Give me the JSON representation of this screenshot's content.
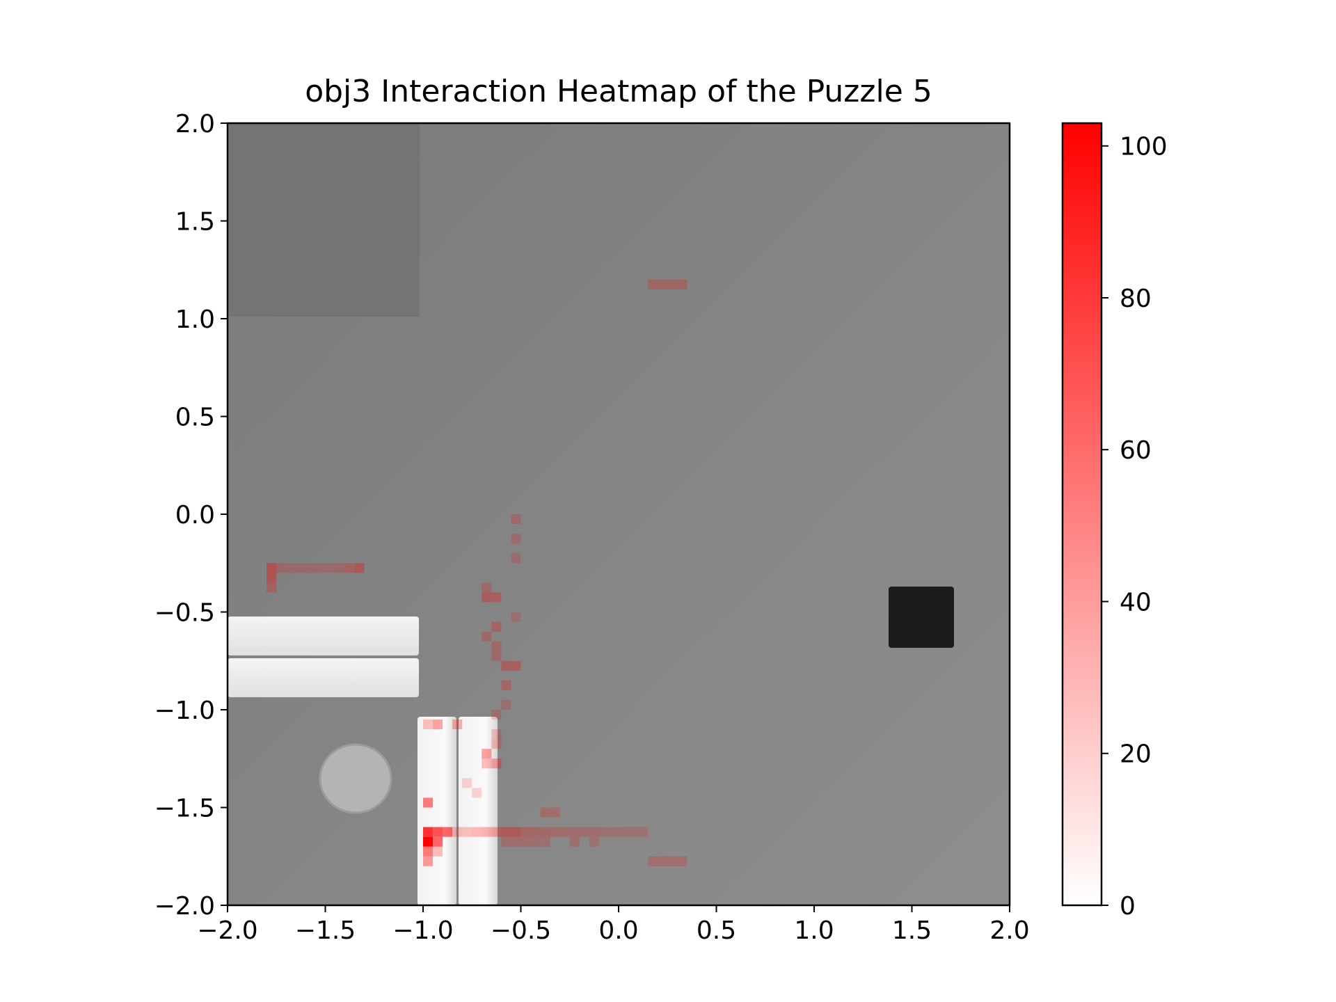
{
  "chart_data": {
    "type": "heatmap",
    "title": "obj3 Interaction Heatmap of the Puzzle 5",
    "xlabel": "",
    "ylabel": "",
    "xlim": [
      -2.0,
      2.0
    ],
    "ylim": [
      -2.0,
      2.0
    ],
    "x_ticks": [
      "−2.0",
      "−1.5",
      "−1.0",
      "−0.5",
      "0.0",
      "0.5",
      "1.0",
      "1.5",
      "2.0"
    ],
    "y_ticks": [
      "2.0",
      "1.5",
      "1.0",
      "0.5",
      "0.0",
      "−0.5",
      "−1.0",
      "−1.5",
      "−2.0"
    ],
    "grid": false,
    "colorbar": {
      "min": 0,
      "max": 103,
      "ticks": [
        "0",
        "20",
        "40",
        "60",
        "80",
        "100"
      ],
      "tick_values": [
        0,
        20,
        40,
        60,
        80,
        100
      ],
      "color_low": "#ffffff",
      "color_high": "#ff0000"
    },
    "cell_size": 0.05,
    "cells": [
      {
        "x": -0.975,
        "y": -1.675,
        "v": 103
      },
      {
        "x": -0.975,
        "y": -1.625,
        "v": 80
      },
      {
        "x": -0.925,
        "y": -1.625,
        "v": 65
      },
      {
        "x": -0.875,
        "y": -1.625,
        "v": 55
      },
      {
        "x": -0.925,
        "y": -1.675,
        "v": 55
      },
      {
        "x": -0.975,
        "y": -1.725,
        "v": 45
      },
      {
        "x": -0.975,
        "y": -1.475,
        "v": 45
      },
      {
        "x": -0.975,
        "y": -1.775,
        "v": 30
      },
      {
        "x": -0.925,
        "y": -1.725,
        "v": 15
      },
      {
        "x": -0.925,
        "y": -1.075,
        "v": 25
      },
      {
        "x": -0.975,
        "y": -1.075,
        "v": 12
      },
      {
        "x": -0.825,
        "y": -1.075,
        "v": 20
      },
      {
        "x": -0.825,
        "y": -1.625,
        "v": 14
      },
      {
        "x": -0.775,
        "y": -1.625,
        "v": 12
      },
      {
        "x": -0.725,
        "y": -1.625,
        "v": 16
      },
      {
        "x": -0.675,
        "y": -1.625,
        "v": 20
      },
      {
        "x": -0.625,
        "y": -1.625,
        "v": 22
      },
      {
        "x": -0.575,
        "y": -1.625,
        "v": 25
      },
      {
        "x": -0.525,
        "y": -1.625,
        "v": 25
      },
      {
        "x": -0.475,
        "y": -1.625,
        "v": 15
      },
      {
        "x": -0.425,
        "y": -1.625,
        "v": 12
      },
      {
        "x": -0.375,
        "y": -1.625,
        "v": 12
      },
      {
        "x": -0.325,
        "y": -1.625,
        "v": 10
      },
      {
        "x": -0.275,
        "y": -1.625,
        "v": 10
      },
      {
        "x": -0.225,
        "y": -1.625,
        "v": 8
      },
      {
        "x": -0.175,
        "y": -1.625,
        "v": 8
      },
      {
        "x": -0.125,
        "y": -1.625,
        "v": 8
      },
      {
        "x": -0.075,
        "y": -1.625,
        "v": 6
      },
      {
        "x": -0.025,
        "y": -1.625,
        "v": 6
      },
      {
        "x": 0.025,
        "y": -1.625,
        "v": 6
      },
      {
        "x": 0.075,
        "y": -1.625,
        "v": 6
      },
      {
        "x": 0.125,
        "y": -1.625,
        "v": 6
      },
      {
        "x": -0.575,
        "y": -1.675,
        "v": 8
      },
      {
        "x": -0.525,
        "y": -1.675,
        "v": 8
      },
      {
        "x": -0.475,
        "y": -1.675,
        "v": 10
      },
      {
        "x": -0.425,
        "y": -1.675,
        "v": 8
      },
      {
        "x": -0.375,
        "y": -1.675,
        "v": 6
      },
      {
        "x": -0.325,
        "y": -1.525,
        "v": 10
      },
      {
        "x": -0.375,
        "y": -1.525,
        "v": 10
      },
      {
        "x": -0.225,
        "y": -1.675,
        "v": 8
      },
      {
        "x": -0.125,
        "y": -1.675,
        "v": 6
      },
      {
        "x": 0.175,
        "y": -1.775,
        "v": 10
      },
      {
        "x": 0.225,
        "y": -1.775,
        "v": 10
      },
      {
        "x": 0.275,
        "y": -1.775,
        "v": 10
      },
      {
        "x": 0.325,
        "y": -1.775,
        "v": 10
      },
      {
        "x": -0.625,
        "y": -1.275,
        "v": 22
      },
      {
        "x": -0.675,
        "y": -1.275,
        "v": 15
      },
      {
        "x": -0.675,
        "y": -1.225,
        "v": 28
      },
      {
        "x": -0.625,
        "y": -1.175,
        "v": 12
      },
      {
        "x": -0.625,
        "y": -1.125,
        "v": 8
      },
      {
        "x": -0.625,
        "y": -1.025,
        "v": 8
      },
      {
        "x": -0.575,
        "y": -0.975,
        "v": 6
      },
      {
        "x": -0.575,
        "y": -0.875,
        "v": 15
      },
      {
        "x": -0.525,
        "y": -0.775,
        "v": 18
      },
      {
        "x": -0.575,
        "y": -0.775,
        "v": 18
      },
      {
        "x": -0.625,
        "y": -0.725,
        "v": 10
      },
      {
        "x": -0.625,
        "y": -0.675,
        "v": 10
      },
      {
        "x": -0.625,
        "y": -0.575,
        "v": 15
      },
      {
        "x": -0.675,
        "y": -0.625,
        "v": 12
      },
      {
        "x": -0.675,
        "y": -0.425,
        "v": 20
      },
      {
        "x": -0.625,
        "y": -0.425,
        "v": 18
      },
      {
        "x": -0.675,
        "y": -0.375,
        "v": 10
      },
      {
        "x": -0.525,
        "y": -0.225,
        "v": 6
      },
      {
        "x": -0.525,
        "y": -0.125,
        "v": 6
      },
      {
        "x": -0.525,
        "y": -0.025,
        "v": 10
      },
      {
        "x": -0.525,
        "y": -0.525,
        "v": 5
      },
      {
        "x": -1.775,
        "y": -0.275,
        "v": 28
      },
      {
        "x": -1.775,
        "y": -0.325,
        "v": 25
      },
      {
        "x": -1.775,
        "y": -0.375,
        "v": 15
      },
      {
        "x": -1.725,
        "y": -0.275,
        "v": 8
      },
      {
        "x": -1.675,
        "y": -0.275,
        "v": 6
      },
      {
        "x": -1.625,
        "y": -0.275,
        "v": 6
      },
      {
        "x": -1.575,
        "y": -0.275,
        "v": 6
      },
      {
        "x": -1.525,
        "y": -0.275,
        "v": 6
      },
      {
        "x": -1.475,
        "y": -0.275,
        "v": 6
      },
      {
        "x": -1.425,
        "y": -0.275,
        "v": 8
      },
      {
        "x": -1.375,
        "y": -0.275,
        "v": 15
      },
      {
        "x": -1.325,
        "y": -0.275,
        "v": 22
      },
      {
        "x": 0.175,
        "y": 1.175,
        "v": 12
      },
      {
        "x": 0.225,
        "y": 1.175,
        "v": 12
      },
      {
        "x": 0.275,
        "y": 1.175,
        "v": 12
      },
      {
        "x": 0.325,
        "y": 1.175,
        "v": 12
      },
      {
        "x": -0.725,
        "y": -1.425,
        "v": 4
      },
      {
        "x": -0.775,
        "y": -1.375,
        "v": 4
      }
    ]
  }
}
